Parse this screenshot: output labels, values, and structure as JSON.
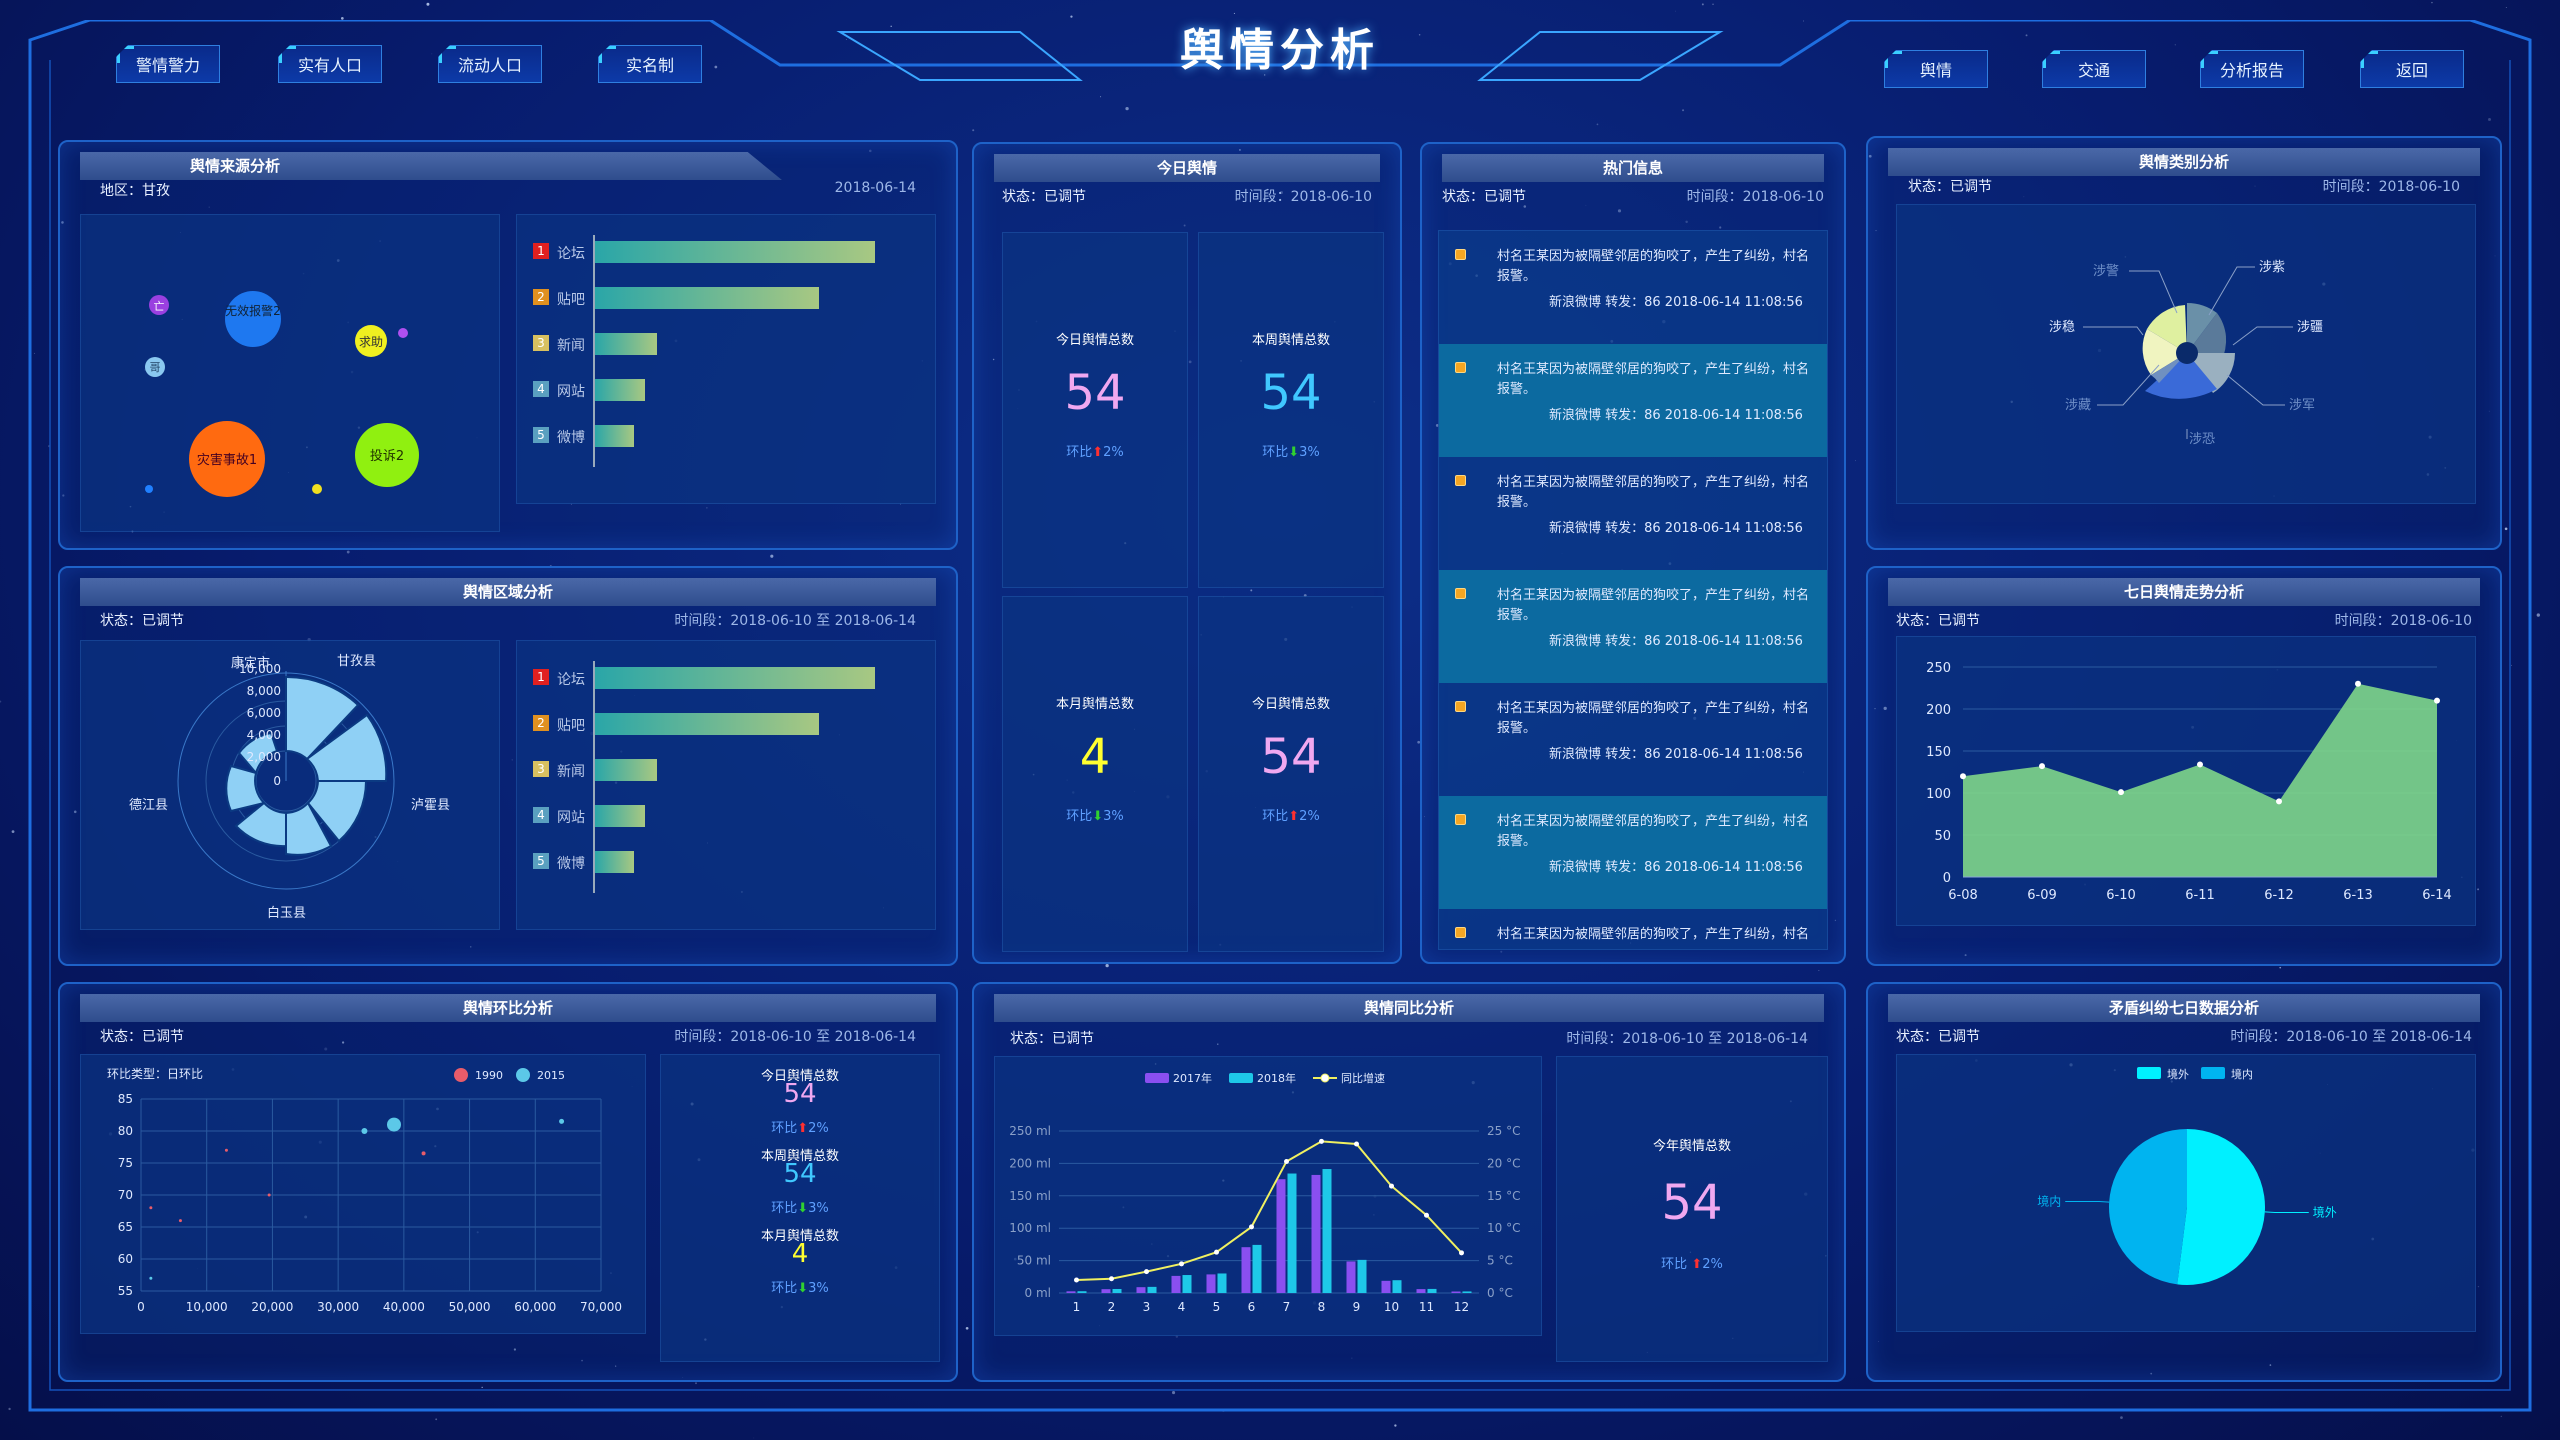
{
  "header": {
    "title": "舆情分析",
    "left_nav": [
      "警情警力",
      "实有人口",
      "流动人口",
      "实名制"
    ],
    "right_nav": [
      "舆情",
      "交通",
      "分析报告",
      "返回"
    ]
  },
  "source_panel": {
    "title": "舆情来源分析",
    "region_label": "地区：甘孜",
    "date": "2018-06-14",
    "bubbles": [
      "灾害事故1",
      "投诉2",
      "无效报警2",
      "求助",
      "亡",
      "哥"
    ],
    "bars": {
      "categories": [
        "论坛",
        "贴吧",
        "新闻",
        "网站",
        "微博"
      ],
      "ranks": [
        "1",
        "2",
        "3",
        "4",
        "5"
      ],
      "values": [
        100,
        80,
        22,
        18,
        14
      ],
      "colors": [
        "#e02020",
        "#e09020",
        "#d8c060",
        "#5aa0c0",
        "#5aa0c0"
      ]
    }
  },
  "region_panel": {
    "title": "舆情区域分析",
    "status": "状态：已调节",
    "time": "时间段：2018-06-10 至 2018-06-14",
    "polar": {
      "categories": [
        "甘孜县",
        "泸霍县",
        "白玉县",
        "德江县",
        "康定市"
      ],
      "radial_ticks": [
        "10,000",
        "8,000",
        "6,000",
        "4,000",
        "2,000",
        "0"
      ]
    },
    "bars": {
      "categories": [
        "论坛",
        "贴吧",
        "新闻",
        "网站",
        "微博"
      ],
      "ranks": [
        "1",
        "2",
        "3",
        "4",
        "5"
      ],
      "values": [
        100,
        80,
        22,
        18,
        14
      ]
    }
  },
  "today_panel": {
    "title": "今日舆情",
    "status": "状态：已调节",
    "time": "时间段：2018-06-10",
    "cells": [
      {
        "caption": "今日舆情总数",
        "value": "54",
        "ratio": "环比",
        "pct": "2%",
        "dir": "up",
        "color": "#f0a8f0"
      },
      {
        "caption": "本周舆情总数",
        "value": "54",
        "ratio": "环比",
        "pct": "3%",
        "dir": "down",
        "color": "#40c8ff"
      },
      {
        "caption": "本月舆情总数",
        "value": "4",
        "ratio": "环比",
        "pct": "3%",
        "dir": "down",
        "color": "#ffff30"
      },
      {
        "caption": "今日舆情总数",
        "value": "54",
        "ratio": "环比",
        "pct": "2%",
        "dir": "up",
        "color": "#f0a8f0"
      }
    ]
  },
  "hot_panel": {
    "title": "热门信息",
    "status": "状态：已调节",
    "time": "时间段：2018-06-10",
    "items": [
      {
        "text": "村名王某因为被隔壁邻居的狗咬了，产生了纠纷，村名报警。",
        "sub": "新浪微博 转发：86 2018-06-14 11:08:56"
      },
      {
        "text": "村名王某因为被隔壁邻居的狗咬了，产生了纠纷，村名报警。",
        "sub": "新浪微博 转发：86 2018-06-14 11:08:56"
      },
      {
        "text": "村名王某因为被隔壁邻居的狗咬了，产生了纠纷，村名报警。",
        "sub": "新浪微博 转发：86 2018-06-14 11:08:56"
      },
      {
        "text": "村名王某因为被隔壁邻居的狗咬了，产生了纠纷，村名报警。",
        "sub": "新浪微博 转发：86 2018-06-14 11:08:56"
      },
      {
        "text": "村名王某因为被隔壁邻居的狗咬了，产生了纠纷，村名报警。",
        "sub": "新浪微博 转发：86 2018-06-14 11:08:56"
      },
      {
        "text": "村名王某因为被隔壁邻居的狗咬了，产生了纠纷，村名报警。",
        "sub": "新浪微博 转发：86 2018-06-14 11:08:56"
      },
      {
        "text": "村名王某因为被隔壁邻居的狗咬了，产生了纠纷，村名",
        "sub": ""
      }
    ]
  },
  "category_panel": {
    "title": "舆情类别分析",
    "status": "状态：已调节",
    "time": "时间段：2018-06-10",
    "labels": [
      "涉警",
      "涉紫",
      "涉稳",
      "涉疆",
      "涉藏",
      "涉军",
      "涉恐"
    ]
  },
  "trend_panel": {
    "title": "七日舆情走势分析",
    "status": "状态：已调节",
    "time": "时间段：2018-06-10"
  },
  "ring_panel": {
    "title": "舆情环比分析",
    "status": "状态：已调节",
    "time": "时间段：2018-06-10 至 2018-06-14",
    "chart_label": "环比类型：日环比",
    "stats": [
      {
        "caption": "今日舆情总数",
        "value": "54",
        "ratio": "环比",
        "pct": "2%",
        "dir": "up",
        "color": "#f0a8f0"
      },
      {
        "caption": "本周舆情总数",
        "value": "54",
        "ratio": "环比",
        "pct": "3%",
        "dir": "down",
        "color": "#40c8ff"
      },
      {
        "caption": "本月舆情总数",
        "value": "4",
        "ratio": "环比",
        "pct": "3%",
        "dir": "down",
        "color": "#ffff30"
      }
    ]
  },
  "yoy_panel": {
    "title": "舆情同比分析",
    "status": "状态：已调节",
    "time": "时间段：2018-06-10 至 2018-06-14",
    "stat": {
      "caption": "今年舆情总数",
      "value": "54",
      "ratio": "环比",
      "pct": "2%",
      "dir": "up",
      "color": "#f0a8f0"
    }
  },
  "dispute_panel": {
    "title": "矛盾纠纷七日数据分析",
    "status": "状态：已调节",
    "time": "时间段：2018-06-10 至 2018-06-14"
  },
  "chart_data": [
    {
      "id": "trend",
      "type": "area",
      "x": [
        "6-08",
        "6-09",
        "6-10",
        "6-11",
        "6-12",
        "6-13",
        "6-14"
      ],
      "values": [
        120,
        132,
        101,
        134,
        90,
        230,
        210
      ],
      "ylim": [
        0,
        250
      ],
      "yticks": [
        0,
        50,
        100,
        150,
        200,
        250
      ],
      "color": "#7fd68a"
    },
    {
      "id": "scatter",
      "type": "scatter",
      "series": [
        {
          "name": "1990",
          "color": "#e85c6a",
          "points": [
            [
              1500,
              68
            ],
            [
              6000,
              66
            ],
            [
              13000,
              77
            ],
            [
              19500,
              70
            ],
            [
              43000,
              76.5
            ]
          ]
        },
        {
          "name": "2015",
          "color": "#5cc8e8",
          "points": [
            [
              34000,
              80
            ],
            [
              38500,
              81
            ],
            [
              64000,
              81.5
            ],
            [
              1500,
              57
            ]
          ]
        }
      ],
      "xlim": [
        0,
        70000
      ],
      "ylim": [
        55,
        85
      ],
      "xticks": [
        "0",
        "10,000",
        "20,000",
        "30,000",
        "40,000",
        "50,000",
        "60,000",
        "70,000"
      ],
      "yticks": [
        "55",
        "60",
        "65",
        "70",
        "75",
        "80",
        "85"
      ]
    },
    {
      "id": "yoy",
      "type": "bar",
      "categories": [
        "1",
        "2",
        "3",
        "4",
        "5",
        "6",
        "7",
        "8",
        "9",
        "10",
        "11",
        "12"
      ],
      "series": [
        {
          "name": "2017年",
          "color": "#8a4ff0",
          "values": [
            2.6,
            5.9,
            9,
            26.4,
            28.7,
            70.7,
            175.6,
            182.2,
            48.7,
            18.8,
            6,
            2.3
          ]
        },
        {
          "name": "2018年",
          "color": "#1ec8e8",
          "values": [
            2.6,
            5.9,
            9,
            26.4,
            28.7,
            70.7,
            175.6,
            182.2,
            48.7,
            18.8,
            6,
            2.3
          ]
        },
        {
          "name": "同比增速",
          "color": "#f0f060",
          "values": [
            2,
            2.2,
            3.3,
            4.5,
            6.3,
            10.2,
            20.3,
            23.4,
            23,
            16.5,
            12,
            6.2
          ]
        }
      ],
      "yleft": {
        "ticks": [
          "0 ml",
          "50 ml",
          "100 ml",
          "150 ml",
          "200 ml",
          "250 ml"
        ],
        "max": 250
      },
      "yright": {
        "ticks": [
          "0 °C",
          "5 °C",
          "10 °C",
          "15 °C",
          "20 °C",
          "25 °C"
        ],
        "max": 25
      }
    },
    {
      "id": "dispute",
      "type": "pie",
      "series": [
        {
          "name": "境外",
          "value": 52,
          "color": "#00f0ff"
        },
        {
          "name": "境内",
          "value": 48,
          "color": "#00b4f0"
        }
      ]
    },
    {
      "id": "category",
      "type": "pie",
      "labels": [
        "涉警",
        "涉紫",
        "涉稳",
        "涉疆",
        "涉藏",
        "涉军",
        "涉恐"
      ],
      "values": [
        30,
        25,
        40,
        35,
        28,
        42,
        70
      ]
    }
  ]
}
